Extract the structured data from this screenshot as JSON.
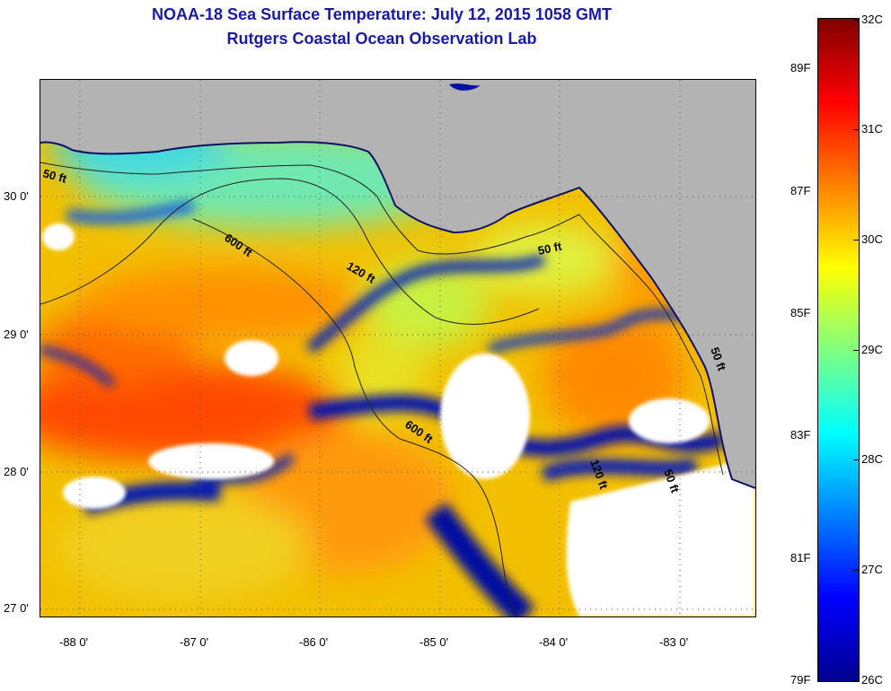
{
  "title": {
    "line1": "NOAA-18 Sea Surface Temperature:  July 12, 2015 1058 GMT",
    "line2": "Rutgers Coastal Ocean Observation Lab"
  },
  "map": {
    "lon_range": [
      -88.33,
      -82.45
    ],
    "lat_range": [
      26.97,
      30.86
    ],
    "lon_ticks": [
      {
        "value": -88,
        "label": "-88 0'"
      },
      {
        "value": -87,
        "label": "-87 0'"
      },
      {
        "value": -86,
        "label": "-86 0'"
      },
      {
        "value": -85,
        "label": "-85 0'"
      },
      {
        "value": -84,
        "label": "-84 0'"
      },
      {
        "value": -83,
        "label": "-83 0'"
      }
    ],
    "lat_ticks": [
      {
        "value": 30,
        "label": "30 0'"
      },
      {
        "value": 29,
        "label": "29 0'"
      },
      {
        "value": 28,
        "label": "28 0'"
      },
      {
        "value": 27,
        "label": "27 0'"
      }
    ],
    "contour_labels": [
      "50 ft",
      "600 ft",
      "120 ft",
      "50 ft",
      "600 ft",
      "120 ft",
      "50 ft",
      "50 ft"
    ],
    "colors": {
      "land": "#b3b3b3",
      "cloud": "#ffffff",
      "grid": "#333333"
    }
  },
  "colorbar": {
    "celsius_labels": [
      "32C",
      "31C",
      "30C",
      "29C",
      "28C",
      "27C",
      "26C"
    ],
    "fahrenheit_labels": [
      "89F",
      "87F",
      "85F",
      "83F",
      "81F",
      "79F"
    ],
    "colormap": [
      "#00008f",
      "#0000ff",
      "#0080ff",
      "#00ffff",
      "#80ff80",
      "#ffff00",
      "#ff8000",
      "#ff0000",
      "#800000"
    ]
  }
}
